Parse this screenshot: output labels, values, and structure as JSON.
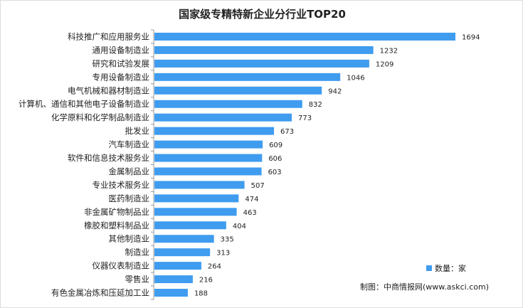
{
  "chart_data": {
    "type": "bar",
    "orientation": "horizontal",
    "title": "国家级专精特新企业分行业TOP20",
    "categories": [
      "科技推广和应用服务业",
      "通用设备制造业",
      "研究和试验发展",
      "专用设备制造业",
      "电气机械和器材制造业",
      "计算机、通信和其他电子设备制造业",
      "化学原料和化学制品制造业",
      "批发业",
      "汽车制造业",
      "软件和信息技术服务业",
      "金属制品业",
      "专业技术服务业",
      "医药制造业",
      "非金属矿物制品业",
      "橡胶和塑料制品业",
      "其他制造业",
      "制造业",
      "仪器仪表制造业",
      "零售业",
      "有色金属冶炼和压延加工业"
    ],
    "values": [
      1694,
      1232,
      1209,
      1046,
      942,
      832,
      773,
      673,
      609,
      606,
      603,
      507,
      474,
      463,
      404,
      335,
      313,
      264,
      216,
      188
    ],
    "legend": "数量：家",
    "legend_position": "bottom-right",
    "xlim": [
      0,
      1750
    ],
    "grid": false,
    "bar_color": "#3f9cef"
  },
  "source": "制图：中商情报网(www.askci.com)"
}
